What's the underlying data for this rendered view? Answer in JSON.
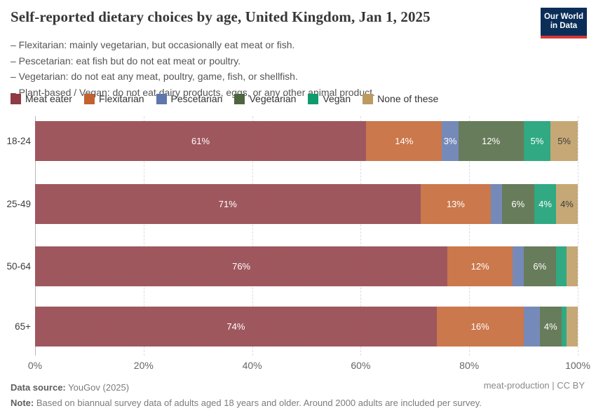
{
  "header": {
    "title": "Self-reported dietary choices by age, United Kingdom, Jan 1, 2025",
    "subtitle_lines": [
      "– Flexitarian: mainly vegetarian, but occasionally eat meat or fish.",
      "– Pescetarian: eat fish but do not eat meat or poultry.",
      "– Vegetarian: do not eat any meat, poultry, game, fish, or shellfish.",
      "– Plant-based / Vegan: do not eat dairy products, eggs, or any other animal product."
    ],
    "logo": {
      "line1": "Our World",
      "line2": "in Data",
      "bg_color": "#0b2e59",
      "accent_color": "#d53832"
    }
  },
  "chart_data": {
    "type": "bar",
    "variant": "stacked-horizontal",
    "title": "Self-reported dietary choices by age, United Kingdom, Jan 1, 2025",
    "categories": [
      "18-24",
      "25-49",
      "50-64",
      "65+"
    ],
    "series": [
      {
        "name": "Meat eater",
        "color": "#8f3b44",
        "values": [
          61,
          71,
          76,
          74
        ]
      },
      {
        "name": "Flexitarian",
        "color": "#c2622e",
        "values": [
          14,
          13,
          12,
          16
        ]
      },
      {
        "name": "Pescetarian",
        "color": "#5e77ac",
        "values": [
          3,
          2,
          2,
          3
        ]
      },
      {
        "name": "Vegetarian",
        "color": "#4e663f",
        "values": [
          12,
          6,
          6,
          4
        ]
      },
      {
        "name": "Vegan",
        "color": "#0f9b6e",
        "values": [
          5,
          4,
          2,
          1
        ]
      },
      {
        "name": "None of these",
        "color": "#bd9a5f",
        "values": [
          5,
          4,
          2,
          2
        ]
      }
    ],
    "bar_labels": [
      [
        "61%",
        "14%",
        "3%",
        "12%",
        "5%",
        "5%"
      ],
      [
        "71%",
        "13%",
        "",
        "6%",
        "4%",
        "4%"
      ],
      [
        "76%",
        "12%",
        "",
        "6%",
        "",
        ""
      ],
      [
        "74%",
        "16%",
        "",
        "4%",
        "",
        ""
      ]
    ],
    "dark_label_series": "None of these",
    "x_ticks": [
      "0%",
      "20%",
      "40%",
      "60%",
      "80%",
      "100%"
    ],
    "xlim": [
      0,
      100
    ],
    "grid": "vertical-dashed",
    "legend_position": "top"
  },
  "footer": {
    "source_label": "Data source:",
    "source_value": " YouGov (2025)",
    "note_label": "Note:",
    "note_value": " Based on biannual survey data of adults aged 18 years and older. Around 2000 adults are included per survey.",
    "license": "meat-production | CC BY"
  }
}
